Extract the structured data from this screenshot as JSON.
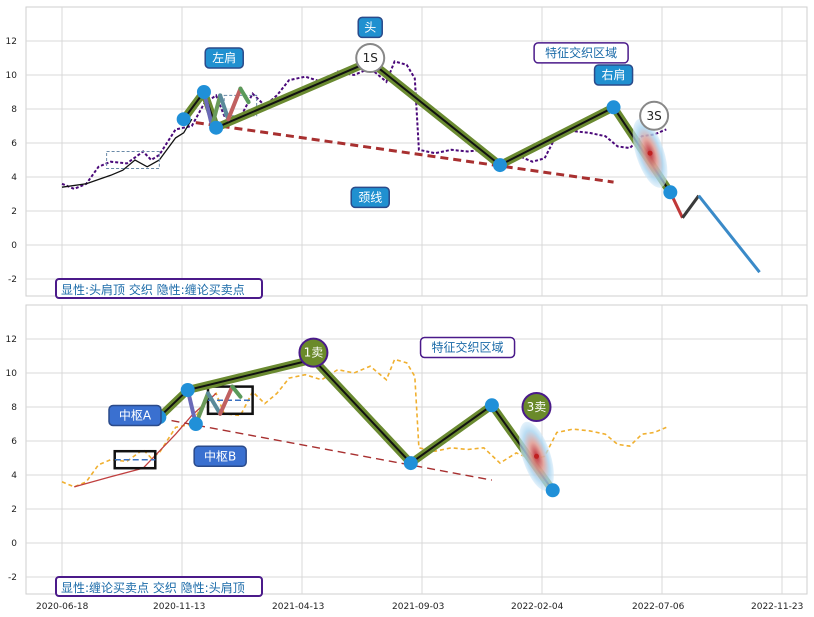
{
  "chart_data": [
    {
      "type": "line",
      "panel": "top",
      "ylim": [
        -3,
        14
      ],
      "yticks": [
        -2,
        0,
        2,
        4,
        6,
        8,
        10,
        12
      ],
      "grid": true,
      "price_color": "#4b0a7a",
      "price_series": [
        [
          0,
          3.6
        ],
        [
          0.15,
          3.3
        ],
        [
          0.3,
          3.6
        ],
        [
          0.45,
          4.6
        ],
        [
          0.6,
          4.9
        ],
        [
          0.8,
          4.8
        ],
        [
          1.0,
          5.5
        ],
        [
          1.1,
          5.0
        ],
        [
          1.2,
          5.3
        ],
        [
          1.4,
          6.8
        ],
        [
          1.6,
          7.0
        ],
        [
          1.75,
          8.3
        ],
        [
          1.9,
          8.8
        ],
        [
          2.0,
          7.6
        ],
        [
          2.2,
          7.5
        ],
        [
          2.35,
          8.9
        ],
        [
          2.5,
          8.2
        ],
        [
          2.65,
          8.8
        ],
        [
          2.8,
          9.7
        ],
        [
          3.0,
          9.9
        ],
        [
          3.2,
          9.6
        ],
        [
          3.4,
          10.2
        ],
        [
          3.6,
          10.0
        ],
        [
          3.8,
          10.4
        ],
        [
          4.0,
          9.6
        ],
        [
          4.1,
          10.8
        ],
        [
          4.25,
          10.6
        ],
        [
          4.35,
          9.8
        ],
        [
          4.4,
          5.6
        ],
        [
          4.6,
          5.4
        ],
        [
          4.8,
          5.6
        ],
        [
          5.0,
          5.5
        ],
        [
          5.2,
          5.6
        ],
        [
          5.4,
          4.7
        ],
        [
          5.6,
          5.3
        ],
        [
          5.8,
          4.9
        ],
        [
          5.95,
          5.1
        ],
        [
          6.1,
          6.5
        ],
        [
          6.3,
          6.7
        ],
        [
          6.5,
          6.6
        ],
        [
          6.7,
          6.4
        ],
        [
          6.85,
          5.8
        ],
        [
          7.0,
          5.7
        ],
        [
          7.15,
          6.4
        ],
        [
          7.3,
          6.5
        ],
        [
          7.45,
          6.8
        ]
      ],
      "trend_line": [
        [
          0.0,
          3.4
        ],
        [
          0.3,
          3.6
        ],
        [
          0.6,
          4.1
        ],
        [
          0.75,
          4.4
        ],
        [
          0.9,
          5.0
        ],
        [
          1.05,
          4.6
        ],
        [
          1.2,
          5.0
        ],
        [
          1.4,
          6.3
        ],
        [
          1.5,
          6.6
        ],
        [
          1.6,
          7.4
        ]
      ],
      "pivot_box": {
        "x": [
          0.55,
          1.2
        ],
        "y": [
          4.5,
          5.5
        ]
      },
      "pivot_box_b": {
        "x": [
          2.0,
          2.4
        ],
        "y": [
          7.6,
          8.8
        ]
      },
      "bi_segments": [
        [
          1.5,
          7.4
        ],
        [
          1.75,
          9.0
        ],
        [
          1.9,
          6.9
        ],
        [
          3.8,
          10.8
        ],
        [
          5.4,
          4.7
        ],
        [
          6.8,
          8.1
        ],
        [
          7.5,
          3.1
        ]
      ],
      "small_segments": [
        [
          1.75,
          9.0
        ],
        [
          1.85,
          7.0
        ],
        [
          1.95,
          8.8
        ],
        [
          2.05,
          7.4
        ],
        [
          2.2,
          9.2
        ],
        [
          2.3,
          8.4
        ]
      ],
      "prediction_segments": [
        [
          7.5,
          3.1
        ],
        [
          7.65,
          1.6
        ],
        [
          7.85,
          2.9
        ],
        [
          8.6,
          -1.6
        ]
      ],
      "neckline": [
        [
          1.65,
          7.2
        ],
        [
          6.8,
          3.7
        ]
      ],
      "scatter_points": [
        [
          1.5,
          7.4
        ],
        [
          1.75,
          9.0
        ],
        [
          1.9,
          6.9
        ],
        [
          3.8,
          10.8
        ],
        [
          5.4,
          4.7
        ],
        [
          6.8,
          8.1
        ],
        [
          7.5,
          3.1
        ]
      ],
      "annotations": [
        {
          "text": "左肩",
          "x": 2.0,
          "y": 11.0
        },
        {
          "text": "头",
          "x": 3.8,
          "y": 12.8
        },
        {
          "text": "1S",
          "x": 3.8,
          "y": 11.0
        },
        {
          "text": "特征交织区域",
          "x": 6.4,
          "y": 11.3
        },
        {
          "text": "右肩",
          "x": 6.8,
          "y": 10.0
        },
        {
          "text": "3S",
          "x": 7.3,
          "y": 7.6
        },
        {
          "text": "颈线",
          "x": 3.8,
          "y": 2.8
        }
      ],
      "caption": "显性:头肩顶 交织 隐性:缠论买卖点"
    },
    {
      "type": "line",
      "panel": "bottom",
      "ylim": [
        -3,
        14
      ],
      "yticks": [
        -2,
        0,
        2,
        4,
        6,
        8,
        10,
        12
      ],
      "grid": true,
      "price_color": "#f0b030",
      "xticks": [
        "2020-06-18",
        "2020-11-13",
        "2021-04-13",
        "2021-09-03",
        "2022-02-04",
        "2022-07-06",
        "2022-11-23"
      ],
      "price_series": [
        [
          0,
          3.6
        ],
        [
          0.15,
          3.3
        ],
        [
          0.3,
          3.6
        ],
        [
          0.45,
          4.6
        ],
        [
          0.6,
          4.9
        ],
        [
          0.8,
          4.8
        ],
        [
          1.0,
          5.5
        ],
        [
          1.1,
          5.0
        ],
        [
          1.2,
          5.3
        ],
        [
          1.4,
          6.8
        ],
        [
          1.6,
          7.0
        ],
        [
          1.75,
          8.3
        ],
        [
          1.9,
          8.8
        ],
        [
          2.0,
          7.6
        ],
        [
          2.2,
          7.5
        ],
        [
          2.35,
          8.9
        ],
        [
          2.5,
          8.2
        ],
        [
          2.65,
          8.8
        ],
        [
          2.8,
          9.7
        ],
        [
          3.0,
          9.9
        ],
        [
          3.2,
          9.6
        ],
        [
          3.4,
          10.2
        ],
        [
          3.6,
          10.0
        ],
        [
          3.8,
          10.4
        ],
        [
          4.0,
          9.6
        ],
        [
          4.1,
          10.8
        ],
        [
          4.25,
          10.6
        ],
        [
          4.35,
          9.8
        ],
        [
          4.4,
          5.6
        ],
        [
          4.6,
          5.4
        ],
        [
          4.8,
          5.6
        ],
        [
          5.0,
          5.5
        ],
        [
          5.2,
          5.6
        ],
        [
          5.4,
          4.7
        ],
        [
          5.6,
          5.3
        ],
        [
          5.8,
          4.9
        ],
        [
          5.95,
          5.1
        ],
        [
          6.1,
          6.5
        ],
        [
          6.3,
          6.7
        ],
        [
          6.5,
          6.6
        ],
        [
          6.7,
          6.4
        ],
        [
          6.85,
          5.8
        ],
        [
          7.0,
          5.7
        ],
        [
          7.15,
          6.4
        ],
        [
          7.3,
          6.5
        ],
        [
          7.45,
          6.8
        ]
      ],
      "trend_line": [
        [
          0.15,
          3.3
        ],
        [
          0.6,
          3.9
        ],
        [
          1.0,
          4.4
        ],
        [
          1.4,
          6.4
        ],
        [
          1.6,
          7.5
        ],
        [
          1.9,
          8.8
        ]
      ],
      "pivot_box": {
        "x": [
          0.65,
          1.15
        ],
        "y": [
          4.4,
          5.4
        ]
      },
      "pivot_box_b": {
        "x": [
          1.8,
          2.35
        ],
        "y": [
          7.6,
          9.2
        ]
      },
      "bi_segments": [
        [
          1.2,
          7.4
        ],
        [
          1.55,
          9.0
        ],
        [
          3.1,
          10.8
        ],
        [
          4.3,
          4.7
        ],
        [
          5.3,
          8.1
        ],
        [
          6.05,
          3.1
        ]
      ],
      "small_segments": [
        [
          1.55,
          9.0
        ],
        [
          1.65,
          7.0
        ],
        [
          1.8,
          8.8
        ],
        [
          1.95,
          7.6
        ],
        [
          2.1,
          9.2
        ],
        [
          2.2,
          8.6
        ]
      ],
      "neckline": [
        [
          1.35,
          7.2
        ],
        [
          5.3,
          3.7
        ]
      ],
      "scatter_points": [
        [
          1.2,
          7.4
        ],
        [
          1.55,
          9.0
        ],
        [
          1.65,
          7.0
        ],
        [
          4.3,
          4.7
        ],
        [
          5.3,
          8.1
        ],
        [
          6.05,
          3.1
        ]
      ],
      "annotations": [
        {
          "text": "中枢A",
          "x": 0.9,
          "y": 7.5
        },
        {
          "text": "中枢B",
          "x": 1.95,
          "y": 5.1
        },
        {
          "text": "1卖",
          "x": 3.1,
          "y": 11.2
        },
        {
          "text": "特征交织区域",
          "x": 5.0,
          "y": 11.5
        },
        {
          "text": "3卖",
          "x": 5.85,
          "y": 8.0
        }
      ],
      "caption": "显性:缠论买卖点 交织 隐性:头肩顶"
    }
  ]
}
